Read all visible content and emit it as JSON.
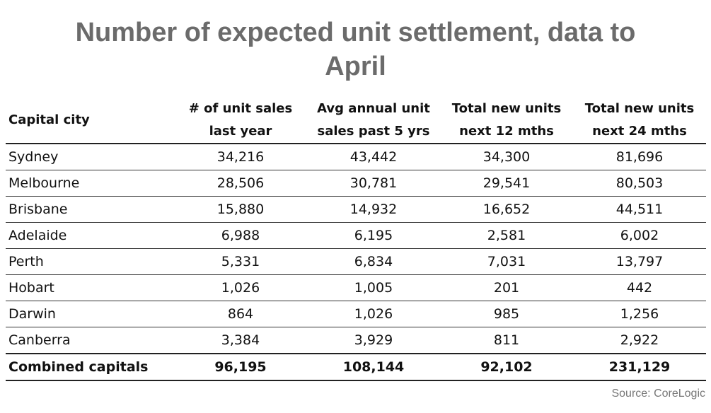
{
  "chart_data": {
    "type": "table",
    "title": "Number of expected unit settlement, data to April",
    "columns": [
      {
        "line1": "Capital city",
        "line2": ""
      },
      {
        "line1": "# of unit sales",
        "line2": "last year"
      },
      {
        "line1": "Avg annual unit",
        "line2": "sales past 5 yrs"
      },
      {
        "line1": "Total new units",
        "line2": "next 12 mths"
      },
      {
        "line1": "Total new units",
        "line2": "next 24 mths"
      }
    ],
    "rows": [
      [
        "Sydney",
        "34,216",
        "43,442",
        "34,300",
        "81,696"
      ],
      [
        "Melbourne",
        "28,506",
        "30,781",
        "29,541",
        "80,503"
      ],
      [
        "Brisbane",
        "15,880",
        "14,932",
        "16,652",
        "44,511"
      ],
      [
        "Adelaide",
        "6,988",
        "6,195",
        "2,581",
        "6,002"
      ],
      [
        "Perth",
        "5,331",
        "6,834",
        "7,031",
        "13,797"
      ],
      [
        "Hobart",
        "1,026",
        "1,005",
        "201",
        "442"
      ],
      [
        "Darwin",
        "864",
        "1,026",
        "985",
        "1,256"
      ],
      [
        "Canberra",
        "3,384",
        "3,929",
        "811",
        "2,922"
      ]
    ],
    "total": [
      "Combined capitals",
      "96,195",
      "108,144",
      "92,102",
      "231,129"
    ],
    "source": "Source: CoreLogic"
  }
}
